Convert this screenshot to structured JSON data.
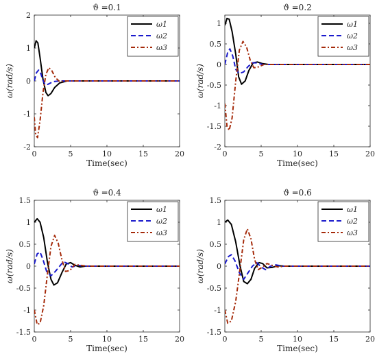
{
  "chart_data": [
    {
      "type": "line",
      "title": "ϑ =0.1",
      "xlabel": "Time(sec)",
      "ylabel": "ω(rad/s)",
      "xlim": [
        0,
        20
      ],
      "ylim": [
        -2,
        2
      ],
      "xticks": [
        0,
        5,
        10,
        15,
        20
      ],
      "yticks": [
        -2,
        -1,
        0,
        1,
        2
      ],
      "legend": "top-right",
      "series": [
        {
          "name": "ω1",
          "sub": "1",
          "color": "#000000",
          "style": "solid",
          "points": [
            [
              0,
              1.0
            ],
            [
              0.25,
              1.22
            ],
            [
              0.5,
              1.15
            ],
            [
              0.8,
              0.7
            ],
            [
              1.2,
              0.05
            ],
            [
              1.6,
              -0.35
            ],
            [
              1.9,
              -0.45
            ],
            [
              2.3,
              -0.38
            ],
            [
              2.8,
              -0.2
            ],
            [
              3.5,
              -0.06
            ],
            [
              4.5,
              0.0
            ],
            [
              20,
              0.0
            ]
          ]
        },
        {
          "name": "ω2",
          "sub": "2",
          "color": "#1a1acc",
          "style": "dashed",
          "points": [
            [
              0,
              0.0
            ],
            [
              0.3,
              0.25
            ],
            [
              0.6,
              0.33
            ],
            [
              0.9,
              0.22
            ],
            [
              1.2,
              0.02
            ],
            [
              1.5,
              -0.12
            ],
            [
              1.9,
              -0.1
            ],
            [
              2.6,
              -0.02
            ],
            [
              3.5,
              0.0
            ],
            [
              20,
              0.0
            ]
          ]
        },
        {
          "name": "ω3",
          "sub": "3",
          "color": "#a52a0a",
          "style": "dashdot",
          "points": [
            [
              0,
              -1.1
            ],
            [
              0.2,
              -1.65
            ],
            [
              0.45,
              -1.72
            ],
            [
              0.8,
              -1.2
            ],
            [
              1.2,
              -0.35
            ],
            [
              1.6,
              0.2
            ],
            [
              2.0,
              0.4
            ],
            [
              2.4,
              0.32
            ],
            [
              2.9,
              0.1
            ],
            [
              3.5,
              -0.02
            ],
            [
              4.3,
              0.0
            ],
            [
              20,
              0.0
            ]
          ]
        }
      ]
    },
    {
      "type": "line",
      "title": "ϑ =0.2",
      "xlabel": "Time(sec)",
      "ylabel": "ω(rad/s)",
      "xlim": [
        0,
        20
      ],
      "ylim": [
        -2,
        1.2
      ],
      "xticks": [
        0,
        5,
        10,
        15,
        20
      ],
      "yticks": [
        -2,
        -1.5,
        -1,
        -0.5,
        0,
        0.5,
        1
      ],
      "legend": "top-right",
      "series": [
        {
          "name": "ω1",
          "sub": "1",
          "color": "#000000",
          "style": "solid",
          "points": [
            [
              0,
              0.95
            ],
            [
              0.3,
              1.12
            ],
            [
              0.6,
              1.1
            ],
            [
              1.0,
              0.8
            ],
            [
              1.5,
              0.25
            ],
            [
              1.9,
              -0.3
            ],
            [
              2.3,
              -0.48
            ],
            [
              2.8,
              -0.4
            ],
            [
              3.3,
              -0.15
            ],
            [
              3.9,
              0.04
            ],
            [
              4.5,
              0.06
            ],
            [
              5.2,
              0.02
            ],
            [
              6,
              0.0
            ],
            [
              20,
              0.0
            ]
          ]
        },
        {
          "name": "ω2",
          "sub": "2",
          "color": "#1a1acc",
          "style": "dashed",
          "points": [
            [
              0,
              0.0
            ],
            [
              0.4,
              0.3
            ],
            [
              0.7,
              0.38
            ],
            [
              1.1,
              0.2
            ],
            [
              1.5,
              -0.12
            ],
            [
              2.0,
              -0.22
            ],
            [
              2.6,
              -0.18
            ],
            [
              3.2,
              -0.05
            ],
            [
              3.8,
              0.04
            ],
            [
              4.4,
              0.04
            ],
            [
              5.2,
              0.0
            ],
            [
              20,
              0.0
            ]
          ]
        },
        {
          "name": "ω3",
          "sub": "3",
          "color": "#a52a0a",
          "style": "dashdot",
          "points": [
            [
              0,
              -0.95
            ],
            [
              0.3,
              -1.5
            ],
            [
              0.6,
              -1.6
            ],
            [
              1.0,
              -1.3
            ],
            [
              1.5,
              -0.4
            ],
            [
              2.0,
              0.35
            ],
            [
              2.5,
              0.56
            ],
            [
              3.0,
              0.42
            ],
            [
              3.5,
              0.1
            ],
            [
              4.0,
              -0.08
            ],
            [
              4.6,
              -0.06
            ],
            [
              5.4,
              0.0
            ],
            [
              20,
              0.0
            ]
          ]
        }
      ]
    },
    {
      "type": "line",
      "title": "ϑ =0.4",
      "xlabel": "Time(sec)",
      "ylabel": "ω(rad/s)",
      "xlim": [
        0,
        20
      ],
      "ylim": [
        -1.5,
        1.5
      ],
      "xticks": [
        0,
        5,
        10,
        15,
        20
      ],
      "yticks": [
        -1.5,
        -1,
        -0.5,
        0,
        0.5,
        1,
        1.5
      ],
      "legend": "top-right",
      "series": [
        {
          "name": "ω1",
          "sub": "1",
          "color": "#000000",
          "style": "solid",
          "points": [
            [
              0,
              1.0
            ],
            [
              0.4,
              1.08
            ],
            [
              0.8,
              1.0
            ],
            [
              1.3,
              0.65
            ],
            [
              1.8,
              0.1
            ],
            [
              2.3,
              -0.3
            ],
            [
              2.7,
              -0.43
            ],
            [
              3.2,
              -0.38
            ],
            [
              3.8,
              -0.15
            ],
            [
              4.4,
              0.05
            ],
            [
              5.0,
              0.08
            ],
            [
              5.6,
              0.02
            ],
            [
              6.3,
              -0.02
            ],
            [
              7.0,
              0.0
            ],
            [
              20,
              0.0
            ]
          ]
        },
        {
          "name": "ω2",
          "sub": "2",
          "color": "#1a1acc",
          "style": "dashed",
          "points": [
            [
              0,
              0.05
            ],
            [
              0.4,
              0.28
            ],
            [
              0.8,
              0.32
            ],
            [
              1.2,
              0.15
            ],
            [
              1.7,
              -0.12
            ],
            [
              2.3,
              -0.22
            ],
            [
              2.9,
              -0.12
            ],
            [
              3.5,
              0.0
            ],
            [
              4.0,
              0.1
            ],
            [
              4.6,
              0.06
            ],
            [
              5.2,
              -0.02
            ],
            [
              6.0,
              0.02
            ],
            [
              7.0,
              0.0
            ],
            [
              20,
              0.0
            ]
          ]
        },
        {
          "name": "ω3",
          "sub": "3",
          "color": "#a52a0a",
          "style": "dashdot",
          "points": [
            [
              0,
              -1.0
            ],
            [
              0.4,
              -1.33
            ],
            [
              0.8,
              -1.3
            ],
            [
              1.3,
              -0.9
            ],
            [
              1.8,
              -0.2
            ],
            [
              2.3,
              0.45
            ],
            [
              2.8,
              0.7
            ],
            [
              3.3,
              0.52
            ],
            [
              3.8,
              0.15
            ],
            [
              4.3,
              -0.12
            ],
            [
              4.9,
              -0.1
            ],
            [
              5.6,
              0.04
            ],
            [
              6.3,
              0.02
            ],
            [
              7.2,
              0.0
            ],
            [
              20,
              0.0
            ]
          ]
        }
      ]
    },
    {
      "type": "line",
      "title": "ϑ =0.6",
      "xlabel": "Time(sec)",
      "ylabel": "ω(rad/s)",
      "xlim": [
        0,
        20
      ],
      "ylim": [
        -1.5,
        1.5
      ],
      "xticks": [
        0,
        5,
        10,
        15,
        20
      ],
      "yticks": [
        -1.5,
        -1,
        -0.5,
        0,
        0.5,
        1,
        1.5
      ],
      "legend": "top-right",
      "series": [
        {
          "name": "ω1",
          "sub": "1",
          "color": "#000000",
          "style": "solid",
          "points": [
            [
              0,
              1.0
            ],
            [
              0.4,
              1.05
            ],
            [
              0.9,
              0.95
            ],
            [
              1.5,
              0.55
            ],
            [
              2.1,
              0.0
            ],
            [
              2.6,
              -0.35
            ],
            [
              3.1,
              -0.4
            ],
            [
              3.6,
              -0.3
            ],
            [
              4.1,
              -0.05
            ],
            [
              4.7,
              0.08
            ],
            [
              5.2,
              0.06
            ],
            [
              5.8,
              -0.04
            ],
            [
              6.5,
              -0.03
            ],
            [
              7.3,
              0.01
            ],
            [
              8.2,
              0.0
            ],
            [
              20,
              0.0
            ]
          ]
        },
        {
          "name": "ω2",
          "sub": "2",
          "color": "#1a1acc",
          "style": "dashed",
          "points": [
            [
              0,
              0.05
            ],
            [
              0.5,
              0.22
            ],
            [
              0.9,
              0.26
            ],
            [
              1.4,
              0.12
            ],
            [
              2.0,
              -0.15
            ],
            [
              2.6,
              -0.3
            ],
            [
              3.2,
              -0.15
            ],
            [
              3.8,
              0.0
            ],
            [
              4.4,
              0.08
            ],
            [
              5.0,
              -0.02
            ],
            [
              5.6,
              -0.08
            ],
            [
              6.3,
              0.0
            ],
            [
              7.0,
              0.03
            ],
            [
              8.0,
              0.0
            ],
            [
              20,
              0.0
            ]
          ]
        },
        {
          "name": "ω3",
          "sub": "3",
          "color": "#a52a0a",
          "style": "dashdot",
          "points": [
            [
              0,
              -1.0
            ],
            [
              0.4,
              -1.3
            ],
            [
              0.9,
              -1.25
            ],
            [
              1.5,
              -0.8
            ],
            [
              2.1,
              -0.05
            ],
            [
              2.6,
              0.6
            ],
            [
              3.1,
              0.85
            ],
            [
              3.6,
              0.62
            ],
            [
              4.1,
              0.15
            ],
            [
              4.6,
              -0.08
            ],
            [
              5.2,
              -0.02
            ],
            [
              5.8,
              0.06
            ],
            [
              6.5,
              0.02
            ],
            [
              7.3,
              -0.02
            ],
            [
              8.2,
              0.0
            ],
            [
              20,
              0.0
            ]
          ]
        }
      ]
    }
  ]
}
